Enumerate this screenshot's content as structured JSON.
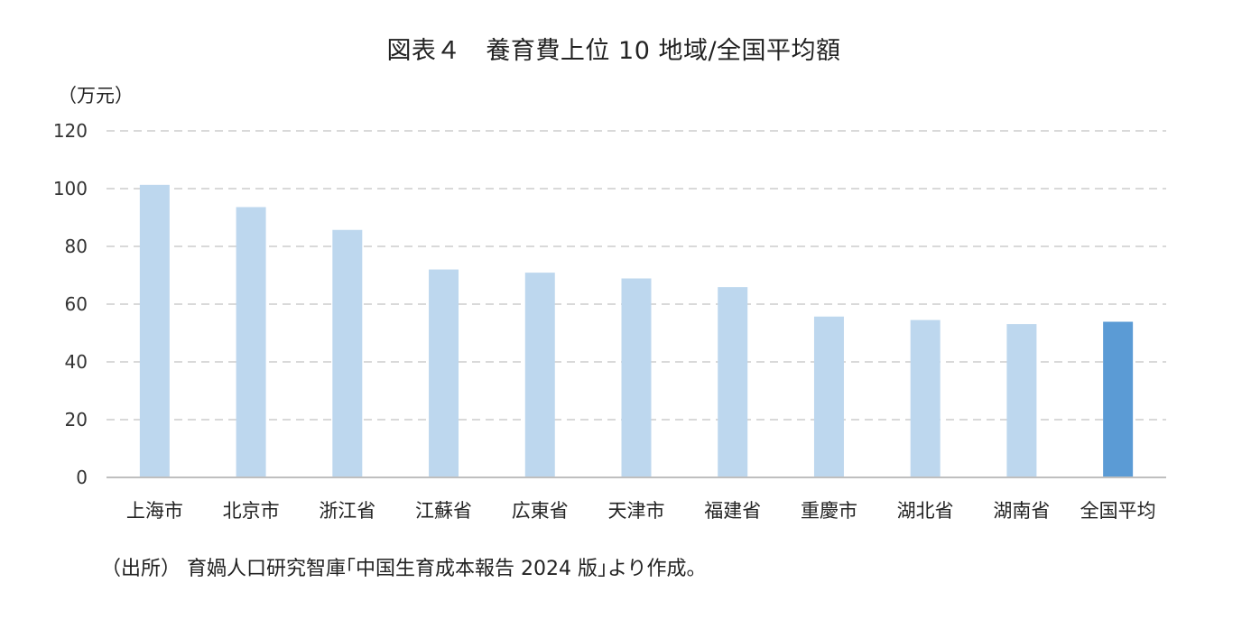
{
  "chart_data": {
    "type": "bar",
    "title": "図表４　養育費上位 10 地域/全国平均額",
    "ylabel": "（万元）",
    "xlabel": "",
    "ylim": [
      0,
      120
    ],
    "yticks": [
      0,
      20,
      40,
      60,
      80,
      100,
      120
    ],
    "grid": true,
    "categories": [
      "上海市",
      "北京市",
      "浙江省",
      "江蘇省",
      "広東省",
      "天津市",
      "福建省",
      "重慶市",
      "湖北省",
      "湖南省",
      "全国平均"
    ],
    "values": [
      101.3,
      93.6,
      85.7,
      72.0,
      70.9,
      68.9,
      65.9,
      55.7,
      54.5,
      53.1,
      53.9
    ],
    "colors": {
      "region": "#bdd7ee",
      "national_average": "#5b9bd5",
      "grid": "#d9d9d9",
      "axis": "#bfbfbf"
    },
    "source": "（出所） 育媧人口研究智庫｢中国生育成本報告 2024 版｣より作成。"
  }
}
